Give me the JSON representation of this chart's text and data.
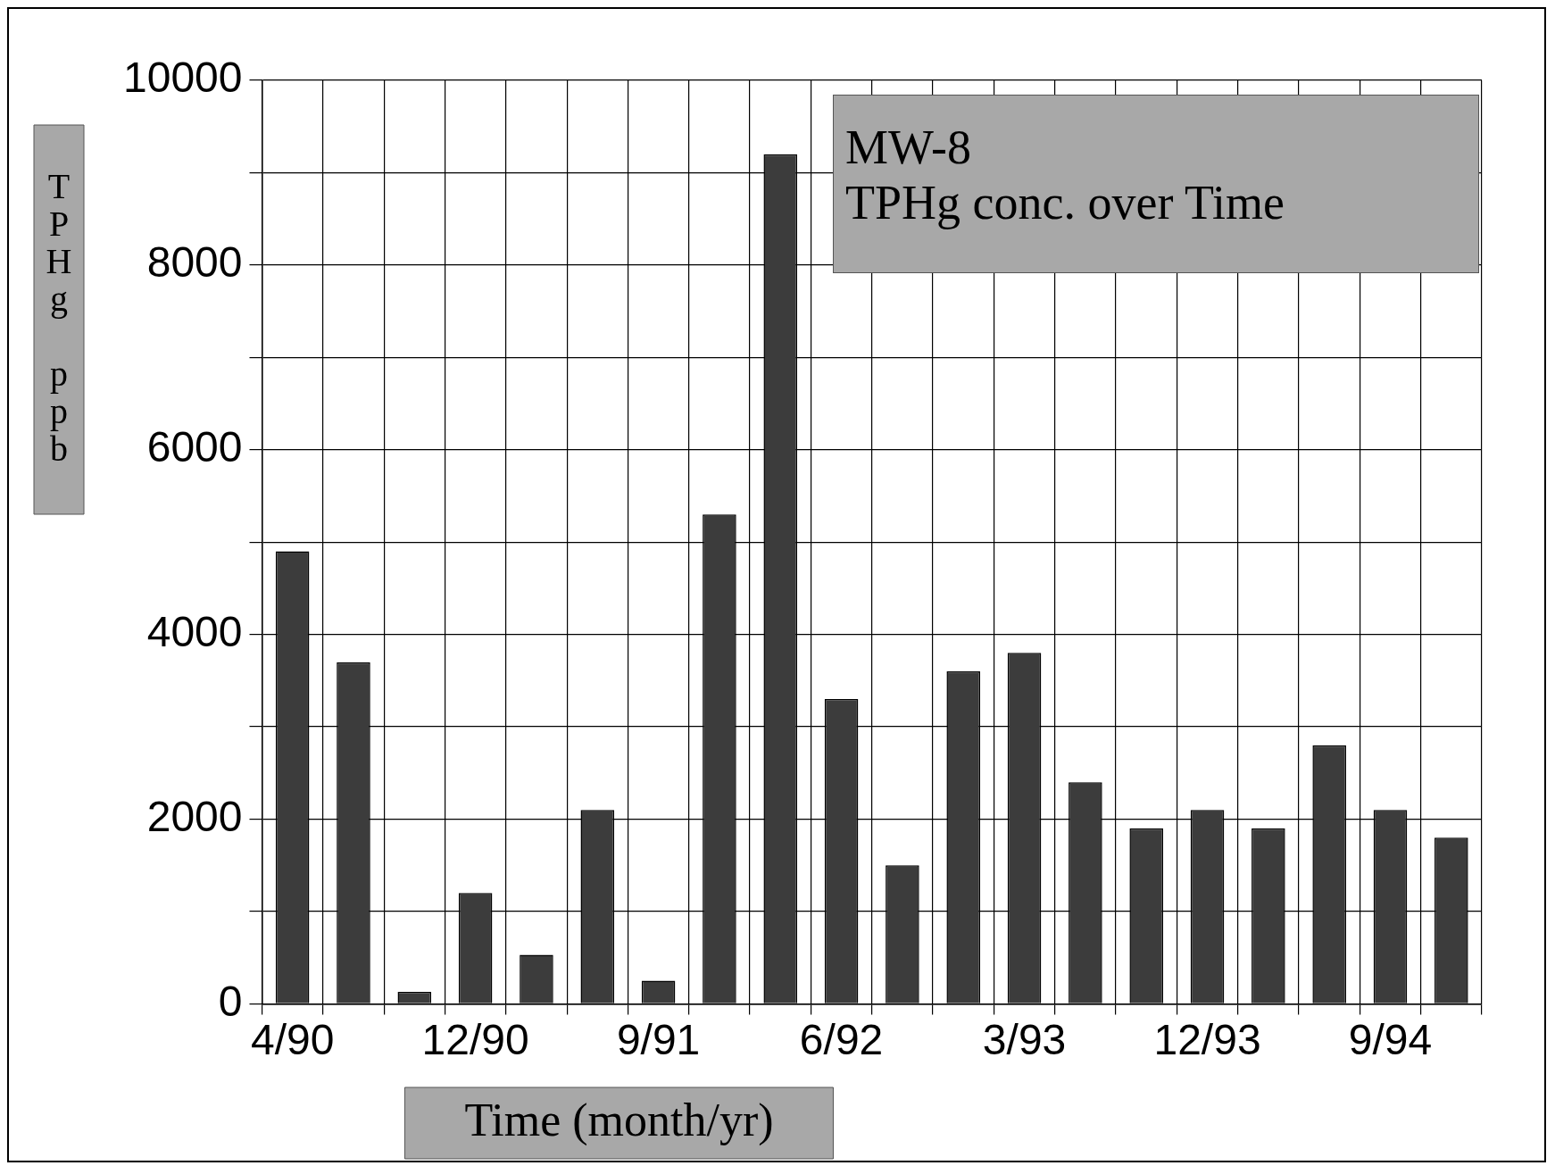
{
  "chart_data": {
    "type": "bar",
    "title": "MW-8\nTPHg conc. over Time",
    "xlabel": "Time (month/yr)",
    "ylabel": "TPHg ppb",
    "categories": [
      "4/90",
      null,
      null,
      "12/90",
      null,
      null,
      "9/91",
      null,
      null,
      "6/92",
      null,
      null,
      "3/93",
      null,
      null,
      "12/93",
      null,
      null,
      "9/94",
      null
    ],
    "values": [
      4900,
      3700,
      130,
      1200,
      530,
      2100,
      250,
      5300,
      9200,
      3300,
      1500,
      3600,
      3800,
      2400,
      1900,
      2100,
      1900,
      2800,
      2100,
      1800
    ],
    "color": "#3c3c3c",
    "ylim": [
      0,
      10000
    ],
    "yticks": [
      0,
      {
        "value": 1000,
        "label": null
      },
      2000,
      {
        "value": 3000,
        "label": null
      },
      4000,
      {
        "value": 5000,
        "label": null
      },
      6000,
      {
        "value": 7000,
        "label": null
      },
      8000,
      {
        "value": 9000,
        "label": null
      },
      10000
    ],
    "grid": true,
    "legend": false
  }
}
